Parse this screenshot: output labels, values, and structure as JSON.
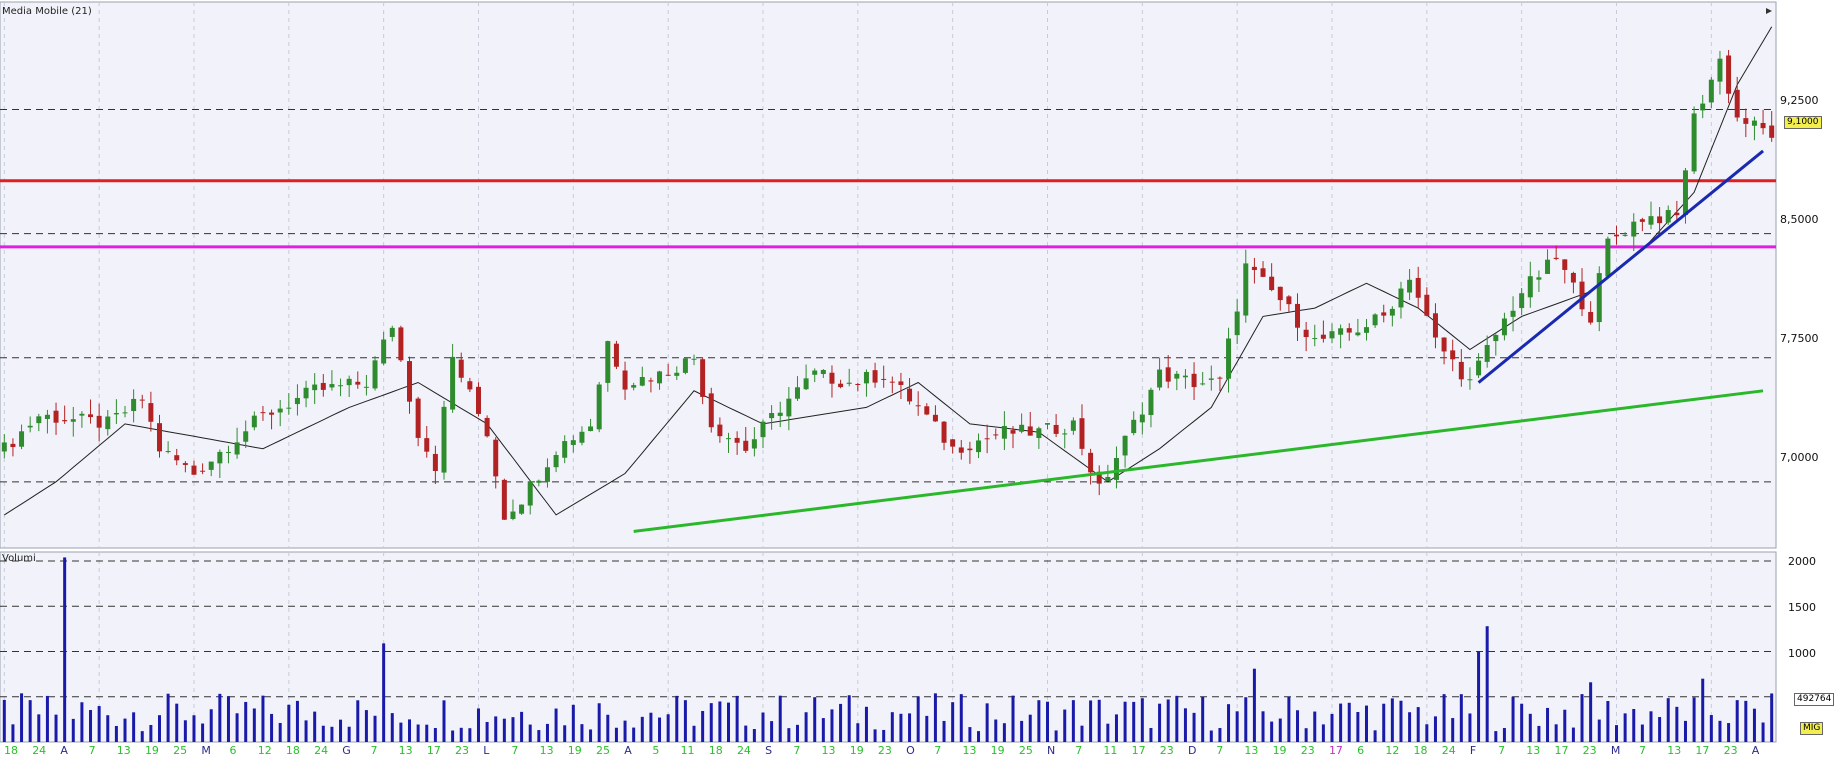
{
  "window": {
    "title": "Media Mobile (21)"
  },
  "volume_pane": {
    "title": "Volumi",
    "last_volume": "492764",
    "mode_badge": "MIG"
  },
  "price_axis": {
    "ticks": [
      "9,2500",
      "8,5000",
      "7,7500",
      "7,0000"
    ],
    "last_price": "9,1000"
  },
  "volume_axis": {
    "ticks": [
      "2000",
      "1500",
      "1000"
    ]
  },
  "x_axis_labels": [
    "18",
    "24",
    "A",
    "7",
    "13",
    "19",
    "25",
    "M",
    "6",
    "12",
    "18",
    "24",
    "G",
    "7",
    "13",
    "17",
    "23",
    "L",
    "7",
    "13",
    "19",
    "25",
    "A",
    "5",
    "11",
    "18",
    "24",
    "S",
    "7",
    "13",
    "19",
    "23",
    "O",
    "7",
    "13",
    "19",
    "25",
    "N",
    "7",
    "11",
    "17",
    "23",
    "D",
    "7",
    "13",
    "19",
    "23",
    "17",
    "6",
    "12",
    "18",
    "24",
    "F",
    "7",
    "13",
    "17",
    "23",
    "M",
    "7",
    "13",
    "17",
    "23",
    "A"
  ],
  "colors": {
    "background": "#f2f3fa",
    "up_candle": "#2e8b2e",
    "down_candle": "#b22222",
    "moving_average": "#222222",
    "volume_bar": "#1a1aaa",
    "resistance_red": "#e02020",
    "resistance_magenta": "#e020e0",
    "trend_blue": "#1a2ab0",
    "trend_green": "#2ab82a"
  },
  "chart_data": {
    "type": "candlestick",
    "title": "Media Mobile (21)",
    "indicator": "moving average (21)",
    "price_range": [
      6.6,
      9.9
    ],
    "volume_range": [
      0,
      2100
    ],
    "grid": true,
    "horizontal_levels": [
      {
        "name": "resistance",
        "value": 8.82,
        "color": "#e02020"
      },
      {
        "name": "support",
        "value": 8.42,
        "color": "#e020e0"
      }
    ],
    "trendlines": [
      {
        "color": "#2ab82a",
        "from_index": 73,
        "from_value": 6.7,
        "to_index": 204,
        "to_value": 7.55
      },
      {
        "color": "#1a2ab0",
        "from_index": 171,
        "from_value": 7.6,
        "to_index": 204,
        "to_value": 9.0
      }
    ],
    "price_anchors": [
      [
        0,
        7.2
      ],
      [
        4,
        7.4
      ],
      [
        12,
        7.35
      ],
      [
        16,
        7.5
      ],
      [
        18,
        7.2
      ],
      [
        22,
        7.05
      ],
      [
        30,
        7.4
      ],
      [
        36,
        7.55
      ],
      [
        42,
        7.6
      ],
      [
        45,
        7.95
      ],
      [
        48,
        7.3
      ],
      [
        50,
        7.1
      ],
      [
        52,
        7.75
      ],
      [
        56,
        7.3
      ],
      [
        58,
        6.8
      ],
      [
        60,
        6.9
      ],
      [
        64,
        7.2
      ],
      [
        68,
        7.35
      ],
      [
        70,
        7.85
      ],
      [
        72,
        7.6
      ],
      [
        76,
        7.65
      ],
      [
        80,
        7.75
      ],
      [
        82,
        7.35
      ],
      [
        86,
        7.2
      ],
      [
        90,
        7.45
      ],
      [
        94,
        7.65
      ],
      [
        98,
        7.6
      ],
      [
        102,
        7.65
      ],
      [
        106,
        7.45
      ],
      [
        110,
        7.2
      ],
      [
        116,
        7.3
      ],
      [
        120,
        7.3
      ],
      [
        124,
        7.35
      ],
      [
        127,
        6.95
      ],
      [
        130,
        7.25
      ],
      [
        134,
        7.65
      ],
      [
        138,
        7.6
      ],
      [
        141,
        7.6
      ],
      [
        144,
        8.3
      ],
      [
        148,
        8.1
      ],
      [
        152,
        7.85
      ],
      [
        156,
        7.9
      ],
      [
        160,
        8.0
      ],
      [
        163,
        8.25
      ],
      [
        166,
        7.85
      ],
      [
        170,
        7.6
      ],
      [
        172,
        7.8
      ],
      [
        176,
        8.15
      ],
      [
        180,
        8.35
      ],
      [
        184,
        8.0
      ],
      [
        186,
        8.45
      ],
      [
        190,
        8.6
      ],
      [
        194,
        8.6
      ],
      [
        196,
        9.2
      ],
      [
        199,
        9.55
      ],
      [
        201,
        9.2
      ],
      [
        203,
        9.15
      ],
      [
        205,
        9.1
      ]
    ],
    "moving_average_anchors": [
      [
        0,
        6.8
      ],
      [
        6,
        7.0
      ],
      [
        14,
        7.35
      ],
      [
        30,
        7.2
      ],
      [
        40,
        7.45
      ],
      [
        48,
        7.6
      ],
      [
        56,
        7.35
      ],
      [
        64,
        6.8
      ],
      [
        72,
        7.05
      ],
      [
        80,
        7.55
      ],
      [
        88,
        7.35
      ],
      [
        100,
        7.45
      ],
      [
        106,
        7.6
      ],
      [
        112,
        7.35
      ],
      [
        120,
        7.3
      ],
      [
        128,
        7.0
      ],
      [
        134,
        7.2
      ],
      [
        140,
        7.45
      ],
      [
        146,
        8.0
      ],
      [
        152,
        8.05
      ],
      [
        158,
        8.2
      ],
      [
        164,
        8.05
      ],
      [
        170,
        7.8
      ],
      [
        176,
        8.0
      ],
      [
        184,
        8.15
      ],
      [
        190,
        8.4
      ],
      [
        196,
        8.75
      ],
      [
        201,
        9.4
      ],
      [
        205,
        9.75
      ]
    ],
    "volume_bars": [
      {
        "index": 7,
        "value": 2040
      },
      {
        "index": 44,
        "value": 1090
      },
      {
        "index": 145,
        "value": 810
      },
      {
        "index": 171,
        "value": 1000
      },
      {
        "index": 172,
        "value": 1280
      },
      {
        "index": 184,
        "value": 660
      },
      {
        "index": 197,
        "value": 700
      }
    ],
    "last_volume": 492764
  }
}
